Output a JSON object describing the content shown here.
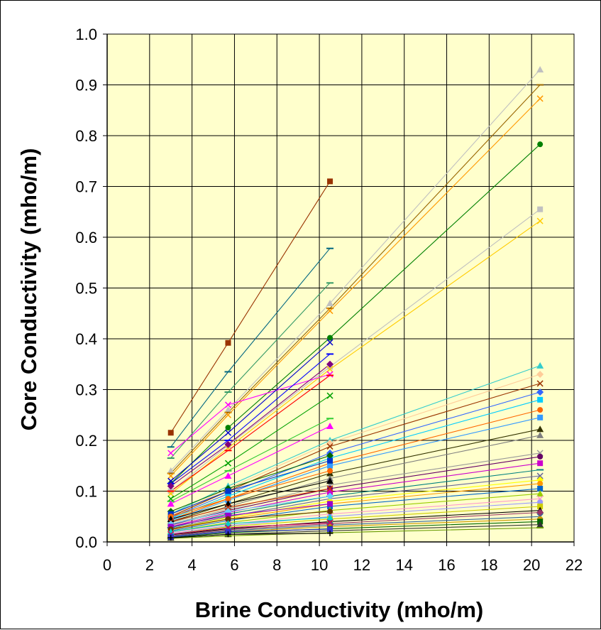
{
  "chart_data": {
    "type": "scatter",
    "title": "",
    "xlabel": "Brine Conductivity (mho/m)",
    "ylabel": "Core Conductivity (mho/m)",
    "xlim": [
      0,
      22
    ],
    "ylim": [
      0,
      1.0
    ],
    "x_ticks": [
      "0",
      "2",
      "4",
      "6",
      "8",
      "10",
      "12",
      "14",
      "16",
      "18",
      "20",
      "22"
    ],
    "y_ticks": [
      "0.0",
      "0.1",
      "0.2",
      "0.3",
      "0.4",
      "0.5",
      "0.6",
      "0.7",
      "0.8",
      "0.9",
      "1.0"
    ],
    "grid": "on",
    "legend": "none",
    "plot_background": "#FFFFCC",
    "series": [
      {
        "x": [
          3.0,
          5.7,
          10.5
        ],
        "y": [
          0.215,
          0.392,
          0.71
        ],
        "color": "#993300",
        "marker": "square"
      },
      {
        "x": [
          3.0,
          5.7,
          10.5
        ],
        "y": [
          0.187,
          0.335,
          0.578
        ],
        "color": "#006680",
        "marker": "dash"
      },
      {
        "x": [
          3.0,
          5.7,
          10.5
        ],
        "y": [
          0.165,
          0.295,
          0.51
        ],
        "color": "#339966",
        "marker": "dash"
      },
      {
        "x": [
          3.0,
          5.7,
          10.5,
          20.4
        ],
        "y": [
          0.14,
          0.26,
          0.47,
          0.93
        ],
        "color": "#C0C0C0",
        "marker": "triangle"
      },
      {
        "x": [
          3.0,
          5.7,
          10.5,
          20.4
        ],
        "y": [
          0.135,
          0.255,
          0.46,
          0.9
        ],
        "color": "#996600",
        "marker": "dash"
      },
      {
        "x": [
          3.0,
          5.7,
          10.5,
          20.4
        ],
        "y": [
          0.13,
          0.25,
          0.455,
          0.873
        ],
        "color": "#FF9900",
        "marker": "x"
      },
      {
        "x": [
          3.0,
          5.7,
          10.5,
          20.4
        ],
        "y": [
          0.115,
          0.225,
          0.402,
          0.783
        ],
        "color": "#008000",
        "marker": "circle"
      },
      {
        "x": [
          3.0,
          5.7,
          10.5,
          20.4
        ],
        "y": [
          0.1,
          0.19,
          0.345,
          0.655
        ],
        "color": "#C0C0C0",
        "marker": "square"
      },
      {
        "x": [
          3.0,
          5.7,
          10.5,
          20.4
        ],
        "y": [
          0.095,
          0.185,
          0.34,
          0.632
        ],
        "color": "#FFCC00",
        "marker": "x"
      },
      {
        "x": [
          3.0,
          5.7,
          10.5
        ],
        "y": [
          0.175,
          0.27,
          0.33
        ],
        "color": "#FF00FF",
        "marker": "x"
      },
      {
        "x": [
          3.0,
          5.7,
          10.5
        ],
        "y": [
          0.12,
          0.215,
          0.393
        ],
        "color": "#0000CC",
        "marker": "x"
      },
      {
        "x": [
          3.0,
          5.7,
          10.5
        ],
        "y": [
          0.115,
          0.2,
          0.37
        ],
        "color": "#0000FF",
        "marker": "dash"
      },
      {
        "x": [
          3.0,
          5.7,
          10.5
        ],
        "y": [
          0.11,
          0.192,
          0.35
        ],
        "color": "#800080",
        "marker": "diamond"
      },
      {
        "x": [
          3.0,
          5.7,
          10.5
        ],
        "y": [
          0.1,
          0.18,
          0.328
        ],
        "color": "#FF0000",
        "marker": "dash"
      },
      {
        "x": [
          3.0,
          5.7,
          10.5
        ],
        "y": [
          0.085,
          0.155,
          0.288
        ],
        "color": "#00A000",
        "marker": "x"
      },
      {
        "x": [
          3.0,
          5.7,
          10.5
        ],
        "y": [
          0.08,
          0.14,
          0.243
        ],
        "color": "#33CC33",
        "marker": "dash"
      },
      {
        "x": [
          3.0,
          5.7,
          10.5
        ],
        "y": [
          0.075,
          0.13,
          0.228
        ],
        "color": "#FF00FF",
        "marker": "triangle"
      },
      {
        "x": [
          3.0,
          5.7,
          10.5,
          20.4
        ],
        "y": [
          0.055,
          0.11,
          0.2,
          0.347
        ],
        "color": "#33CCCC",
        "marker": "triangle"
      },
      {
        "x": [
          3.0,
          5.7,
          10.5,
          20.4
        ],
        "y": [
          0.052,
          0.105,
          0.195,
          0.33
        ],
        "color": "#FFCC99",
        "marker": "diamond"
      },
      {
        "x": [
          3.0,
          5.7,
          10.5,
          20.4
        ],
        "y": [
          0.05,
          0.1,
          0.188,
          0.312
        ],
        "color": "#993300",
        "marker": "x"
      },
      {
        "x": [
          3.0,
          5.7,
          10.5,
          20.4
        ],
        "y": [
          0.048,
          0.095,
          0.175,
          0.295
        ],
        "color": "#3366FF",
        "marker": "diamond"
      },
      {
        "x": [
          3.0,
          5.7,
          10.5,
          20.4
        ],
        "y": [
          0.046,
          0.09,
          0.165,
          0.28
        ],
        "color": "#00CCFF",
        "marker": "square"
      },
      {
        "x": [
          3.0,
          5.7,
          10.5,
          20.4
        ],
        "y": [
          0.044,
          0.085,
          0.155,
          0.26
        ],
        "color": "#FF6600",
        "marker": "circle"
      },
      {
        "x": [
          3.0,
          5.7,
          10.5,
          20.4
        ],
        "y": [
          0.042,
          0.082,
          0.15,
          0.245
        ],
        "color": "#3399FF",
        "marker": "square"
      },
      {
        "x": [
          3.0,
          5.7,
          10.5,
          20.4
        ],
        "y": [
          0.04,
          0.075,
          0.135,
          0.222
        ],
        "color": "#333300",
        "marker": "triangle"
      },
      {
        "x": [
          3.0,
          5.7,
          10.5,
          20.4
        ],
        "y": [
          0.038,
          0.07,
          0.125,
          0.21
        ],
        "color": "#808080",
        "marker": "triangle"
      },
      {
        "x": [
          3.0,
          5.7,
          10.5,
          20.4
        ],
        "y": [
          0.035,
          0.065,
          0.112,
          0.175
        ],
        "color": "#999999",
        "marker": "x"
      },
      {
        "x": [
          3.0,
          5.7,
          10.5,
          20.4
        ],
        "y": [
          0.033,
          0.062,
          0.105,
          0.168
        ],
        "color": "#660066",
        "marker": "circle"
      },
      {
        "x": [
          3.0,
          5.7,
          10.5,
          20.4
        ],
        "y": [
          0.03,
          0.058,
          0.098,
          0.155
        ],
        "color": "#CC00CC",
        "marker": "square"
      },
      {
        "x": [
          3.0,
          5.7,
          10.5,
          20.4
        ],
        "y": [
          0.028,
          0.055,
          0.09,
          0.142
        ],
        "color": "#008080",
        "marker": "dash"
      },
      {
        "x": [
          3.0,
          5.7,
          10.5,
          20.4
        ],
        "y": [
          0.026,
          0.05,
          0.085,
          0.13
        ],
        "color": "#666699",
        "marker": "x"
      },
      {
        "x": [
          3.0,
          5.7,
          10.5,
          20.4
        ],
        "y": [
          0.025,
          0.048,
          0.08,
          0.122
        ],
        "color": "#FFFF00",
        "marker": "diamond"
      },
      {
        "x": [
          3.0,
          5.7,
          10.5,
          20.4
        ],
        "y": [
          0.024,
          0.045,
          0.075,
          0.115
        ],
        "color": "#FF9900",
        "marker": "circle"
      },
      {
        "x": [
          3.0,
          5.7,
          10.5,
          20.4
        ],
        "y": [
          0.022,
          0.042,
          0.07,
          0.105
        ],
        "color": "#0066CC",
        "marker": "square"
      },
      {
        "x": [
          3.0,
          5.7,
          10.5,
          20.4
        ],
        "y": [
          0.02,
          0.038,
          0.062,
          0.095
        ],
        "color": "#99CC00",
        "marker": "triangle"
      },
      {
        "x": [
          3.0,
          5.7,
          10.5,
          20.4
        ],
        "y": [
          0.018,
          0.035,
          0.055,
          0.085
        ],
        "color": "#FF99CC",
        "marker": "x"
      },
      {
        "x": [
          3.0,
          5.7,
          10.5,
          20.4
        ],
        "y": [
          0.016,
          0.032,
          0.05,
          0.078
        ],
        "color": "#9999FF",
        "marker": "circle"
      },
      {
        "x": [
          3.0,
          5.7,
          10.5,
          20.4
        ],
        "y": [
          0.015,
          0.03,
          0.045,
          0.07
        ],
        "color": "#CCCC00",
        "marker": "square"
      },
      {
        "x": [
          3.0,
          5.7,
          10.5,
          20.4
        ],
        "y": [
          0.014,
          0.026,
          0.04,
          0.062
        ],
        "color": "#000000",
        "marker": "triangle"
      },
      {
        "x": [
          3.0,
          5.7,
          10.5,
          20.4
        ],
        "y": [
          0.012,
          0.024,
          0.036,
          0.058
        ],
        "color": "#993366",
        "marker": "diamond"
      },
      {
        "x": [
          3.0,
          5.7,
          10.5,
          20.4
        ],
        "y": [
          0.011,
          0.022,
          0.033,
          0.05
        ],
        "color": "#336699",
        "marker": "x"
      },
      {
        "x": [
          3.0,
          5.7,
          10.5,
          20.4
        ],
        "y": [
          0.01,
          0.02,
          0.03,
          0.045
        ],
        "color": "#CC9900",
        "marker": "circle"
      },
      {
        "x": [
          3.0,
          5.7,
          10.5,
          20.4
        ],
        "y": [
          0.009,
          0.018,
          0.026,
          0.04
        ],
        "color": "#006600",
        "marker": "square"
      },
      {
        "x": [
          3.0,
          5.7,
          10.5,
          20.4
        ],
        "y": [
          0.008,
          0.015,
          0.022,
          0.034
        ],
        "color": "#333333",
        "marker": "triangle"
      },
      {
        "x": [
          3.0,
          5.7,
          10.5,
          20.4
        ],
        "y": [
          0.007,
          0.012,
          0.018,
          0.028
        ],
        "color": "#669900",
        "marker": "dash"
      },
      {
        "x": [
          3.0,
          5.7,
          10.5
        ],
        "y": [
          0.06,
          0.105,
          0.17
        ],
        "color": "#006600",
        "marker": "diamond"
      },
      {
        "x": [
          3.0,
          5.7,
          10.5
        ],
        "y": [
          0.055,
          0.1,
          0.16
        ],
        "color": "#0033CC",
        "marker": "square"
      },
      {
        "x": [
          3.0,
          5.7,
          10.5
        ],
        "y": [
          0.05,
          0.085,
          0.14
        ],
        "color": "#FF6600",
        "marker": "circle"
      },
      {
        "x": [
          3.0,
          5.7,
          10.5
        ],
        "y": [
          0.045,
          0.075,
          0.12
        ],
        "color": "#000000",
        "marker": "triangle"
      },
      {
        "x": [
          3.0,
          5.7,
          10.5
        ],
        "y": [
          0.04,
          0.068,
          0.105
        ],
        "color": "#CC3300",
        "marker": "x"
      },
      {
        "x": [
          3.0,
          5.7,
          10.5
        ],
        "y": [
          0.035,
          0.06,
          0.09
        ],
        "color": "#66CCFF",
        "marker": "diamond"
      },
      {
        "x": [
          3.0,
          5.7,
          10.5
        ],
        "y": [
          0.03,
          0.052,
          0.075
        ],
        "color": "#9900CC",
        "marker": "square"
      },
      {
        "x": [
          3.0,
          5.7,
          10.5
        ],
        "y": [
          0.025,
          0.045,
          0.06
        ],
        "color": "#663300",
        "marker": "circle"
      },
      {
        "x": [
          3.0,
          5.7,
          10.5
        ],
        "y": [
          0.02,
          0.036,
          0.048
        ],
        "color": "#00CCCC",
        "marker": "triangle"
      },
      {
        "x": [
          3.0,
          5.7,
          10.5
        ],
        "y": [
          0.015,
          0.028,
          0.038
        ],
        "color": "#CC0066",
        "marker": "x"
      },
      {
        "x": [
          3.0,
          5.7,
          10.5
        ],
        "y": [
          0.01,
          0.02,
          0.025
        ],
        "color": "#3333CC",
        "marker": "square"
      },
      {
        "x": [
          3.0,
          5.7,
          10.5
        ],
        "y": [
          0.008,
          0.015,
          0.017
        ],
        "color": "#000000",
        "marker": "plus"
      }
    ]
  }
}
